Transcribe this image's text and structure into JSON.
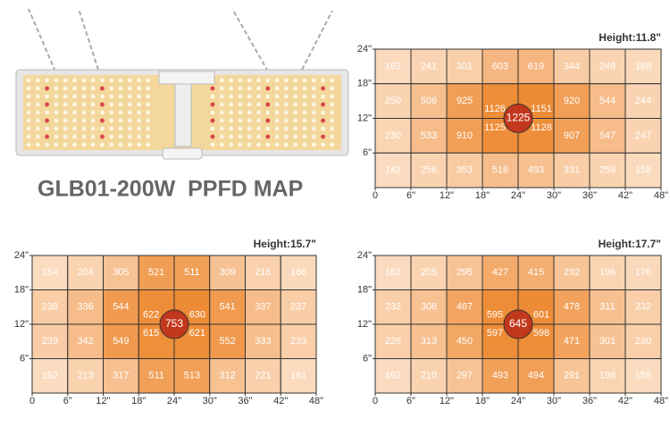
{
  "header": {
    "title": "GLB01-200W  PPFD MAP"
  },
  "chart_data": [
    {
      "type": "heatmap",
      "title": "Height:11.8\"",
      "values": [
        [
          162,
          241,
          301,
          603,
          619,
          344,
          248,
          168
        ],
        [
          250,
          506,
          925,
          1126,
          1151,
          920,
          544,
          244
        ],
        [
          230,
          533,
          910,
          1125,
          1128,
          907,
          547,
          247
        ],
        [
          142,
          256,
          353,
          516,
          493,
          331,
          258,
          158
        ]
      ],
      "center_value": 1225,
      "xlim": [
        0,
        48
      ],
      "ylim": [
        0,
        24
      ],
      "xticks": [
        0,
        {
          "value": 6,
          "label": "6\""
        },
        {
          "value": 12,
          "label": "12\""
        },
        {
          "value": 18,
          "label": "18\""
        },
        {
          "value": 24,
          "label": "24\""
        },
        {
          "value": 30,
          "label": "30\""
        },
        {
          "value": 36,
          "label": "36\""
        },
        {
          "value": 42,
          "label": "42\""
        },
        {
          "value": 48,
          "label": "48\""
        }
      ],
      "yticks": [
        {
          "value": 6,
          "label": "6\""
        },
        {
          "value": 12,
          "label": "12\""
        },
        {
          "value": 18,
          "label": "18\""
        },
        {
          "value": 24,
          "label": "24\""
        }
      ],
      "colors": [
        "#fbdcc0",
        "#ee8c36"
      ],
      "center_color": "#c2381c"
    },
    {
      "type": "heatmap",
      "title": "Height:15.7\"",
      "values": [
        [
          154,
          204,
          305,
          521,
          511,
          309,
          216,
          166
        ],
        [
          238,
          336,
          544,
          622,
          630,
          541,
          337,
          237
        ],
        [
          239,
          342,
          549,
          615,
          621,
          552,
          333,
          233
        ],
        [
          152,
          213,
          317,
          511,
          513,
          312,
          221,
          161
        ]
      ],
      "center_value": 753,
      "xlim": [
        0,
        48
      ],
      "ylim": [
        0,
        24
      ],
      "xticks": [
        0,
        {
          "value": 6,
          "label": "6\""
        },
        {
          "value": 12,
          "label": "12\""
        },
        {
          "value": 18,
          "label": "18\""
        },
        {
          "value": 24,
          "label": "24\""
        },
        {
          "value": 30,
          "label": "30\""
        },
        {
          "value": 36,
          "label": "36\""
        },
        {
          "value": 42,
          "label": "42\""
        },
        {
          "value": 48,
          "label": "48\""
        }
      ],
      "yticks": [
        {
          "value": 6,
          "label": "6\""
        },
        {
          "value": 12,
          "label": "12\""
        },
        {
          "value": 18,
          "label": "18\""
        },
        {
          "value": 24,
          "label": "24\""
        }
      ],
      "colors": [
        "#fbdcc0",
        "#ee8c36"
      ],
      "center_color": "#c2381c"
    },
    {
      "type": "heatmap",
      "title": "Height:17.7\"",
      "values": [
        [
          162,
          205,
          295,
          427,
          415,
          292,
          196,
          176
        ],
        [
          232,
          308,
          467,
          595,
          601,
          478,
          311,
          232
        ],
        [
          226,
          313,
          450,
          597,
          598,
          471,
          301,
          230
        ],
        [
          162,
          210,
          297,
          493,
          494,
          291,
          198,
          158
        ]
      ],
      "center_value": 645,
      "xlim": [
        0,
        48
      ],
      "ylim": [
        0,
        24
      ],
      "xticks": [
        0,
        {
          "value": 6,
          "label": "6\""
        },
        {
          "value": 12,
          "label": "12\""
        },
        {
          "value": 18,
          "label": "18\""
        },
        {
          "value": 24,
          "label": "24\""
        },
        {
          "value": 30,
          "label": "30\""
        },
        {
          "value": 36,
          "label": "36\""
        },
        {
          "value": 42,
          "label": "42\""
        },
        {
          "value": 48,
          "label": "48\""
        }
      ],
      "yticks": [
        {
          "value": 6,
          "label": "6\""
        },
        {
          "value": 12,
          "label": "12\""
        },
        {
          "value": 18,
          "label": "18\""
        },
        {
          "value": 24,
          "label": "24\""
        }
      ],
      "colors": [
        "#fbdcc0",
        "#ee8c36"
      ],
      "center_color": "#c2381c"
    }
  ]
}
